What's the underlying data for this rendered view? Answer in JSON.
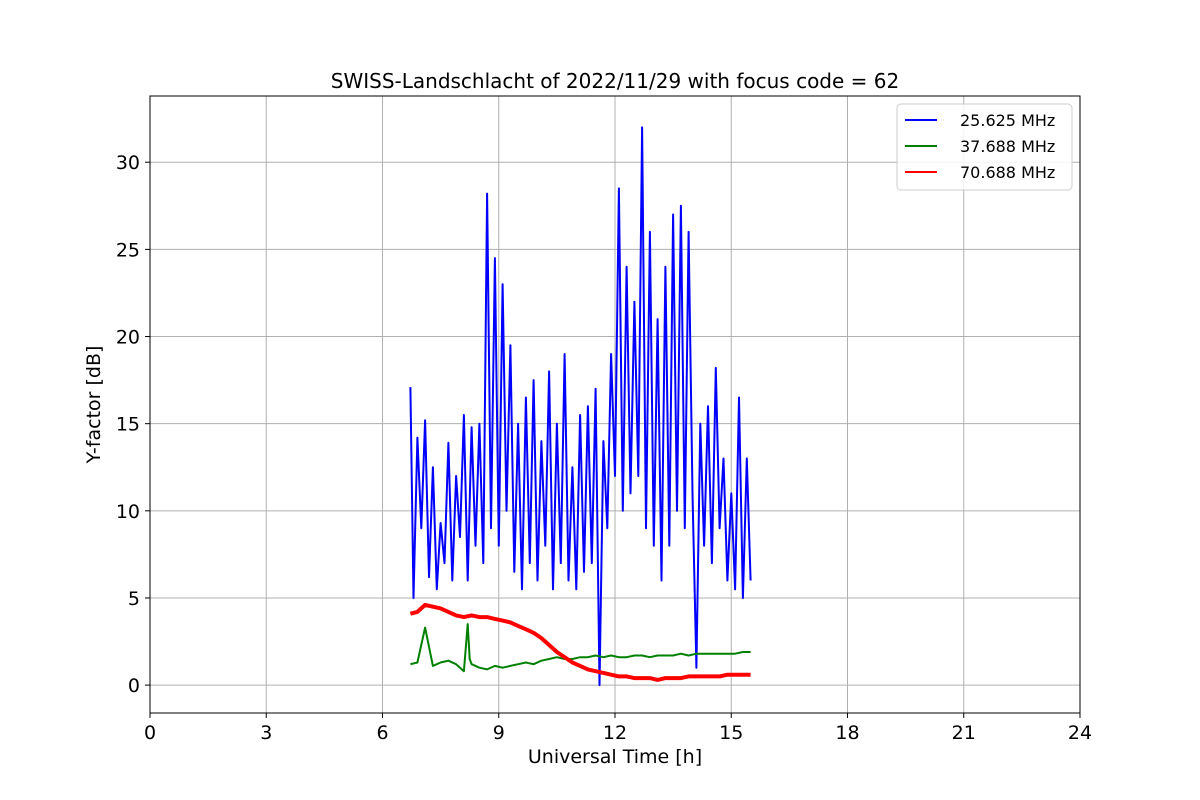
{
  "chart_data": {
    "type": "line",
    "title": "SWISS-Landschlacht of 2022/11/29 with focus code = 62",
    "xlabel": "Universal Time [h]",
    "ylabel": "Y-factor [dB]",
    "xlim": [
      0,
      24
    ],
    "ylim": [
      -1.6,
      33.8
    ],
    "xticks": [
      0,
      3,
      6,
      9,
      12,
      15,
      18,
      21,
      24
    ],
    "yticks": [
      0,
      5,
      10,
      15,
      20,
      25,
      30
    ],
    "grid": true,
    "legend_position": "top-right",
    "series": [
      {
        "name": "25.625 MHz",
        "color": "#0000ff",
        "x": [
          6.72,
          6.8,
          6.9,
          7.0,
          7.1,
          7.2,
          7.3,
          7.4,
          7.5,
          7.6,
          7.7,
          7.8,
          7.9,
          8.0,
          8.1,
          8.2,
          8.3,
          8.4,
          8.5,
          8.6,
          8.7,
          8.8,
          8.9,
          9.0,
          9.1,
          9.2,
          9.3,
          9.4,
          9.5,
          9.6,
          9.7,
          9.8,
          9.9,
          10.0,
          10.1,
          10.2,
          10.3,
          10.4,
          10.5,
          10.6,
          10.7,
          10.8,
          10.9,
          11.0,
          11.1,
          11.2,
          11.3,
          11.4,
          11.5,
          11.6,
          11.7,
          11.8,
          11.9,
          12.0,
          12.1,
          12.2,
          12.3,
          12.4,
          12.5,
          12.6,
          12.7,
          12.8,
          12.9,
          13.0,
          13.1,
          13.2,
          13.3,
          13.4,
          13.5,
          13.6,
          13.7,
          13.8,
          13.9,
          14.0,
          14.1,
          14.2,
          14.3,
          14.4,
          14.5,
          14.6,
          14.7,
          14.8,
          14.9,
          15.0,
          15.1,
          15.2,
          15.3,
          15.4,
          15.5
        ],
        "values": [
          17.1,
          5.0,
          14.2,
          9.0,
          15.2,
          6.2,
          12.5,
          5.5,
          9.3,
          7.0,
          13.9,
          6.0,
          12.0,
          8.5,
          15.5,
          6.0,
          14.8,
          8.0,
          15.0,
          7.0,
          28.2,
          9.0,
          24.5,
          8.0,
          23.0,
          10.0,
          19.5,
          6.5,
          15.0,
          5.5,
          16.5,
          7.0,
          17.5,
          6.0,
          14.0,
          8.0,
          18.0,
          5.5,
          15.0,
          7.0,
          19.0,
          6.0,
          12.5,
          5.5,
          15.5,
          6.5,
          16.0,
          7.0,
          17.0,
          0.0,
          14.0,
          9.0,
          19.0,
          12.0,
          28.5,
          10.0,
          24.0,
          11.0,
          22.0,
          12.0,
          32.0,
          9.0,
          26.0,
          8.0,
          21.0,
          6.0,
          24.0,
          8.0,
          27.0,
          10.0,
          27.5,
          9.0,
          26.0,
          11.0,
          1.0,
          15.0,
          8.0,
          16.0,
          7.0,
          18.2,
          9.0,
          13.0,
          6.0,
          11.0,
          5.5,
          16.5,
          5.0,
          13.0,
          6.0
        ]
      },
      {
        "name": "37.688 MHz",
        "color": "#008000",
        "x": [
          6.72,
          6.9,
          7.1,
          7.3,
          7.5,
          7.7,
          7.9,
          8.1,
          8.2,
          8.25,
          8.3,
          8.5,
          8.7,
          8.9,
          9.1,
          9.3,
          9.5,
          9.7,
          9.9,
          10.1,
          10.3,
          10.5,
          10.7,
          10.9,
          11.1,
          11.3,
          11.5,
          11.7,
          11.9,
          12.1,
          12.3,
          12.5,
          12.7,
          12.9,
          13.1,
          13.3,
          13.5,
          13.7,
          13.9,
          14.1,
          14.3,
          14.5,
          14.7,
          14.9,
          15.1,
          15.3,
          15.5
        ],
        "values": [
          1.2,
          1.3,
          3.3,
          1.1,
          1.3,
          1.4,
          1.2,
          0.8,
          3.5,
          1.5,
          1.2,
          1.0,
          0.9,
          1.1,
          1.0,
          1.1,
          1.2,
          1.3,
          1.2,
          1.4,
          1.5,
          1.6,
          1.5,
          1.5,
          1.6,
          1.6,
          1.7,
          1.6,
          1.7,
          1.6,
          1.6,
          1.7,
          1.7,
          1.6,
          1.7,
          1.7,
          1.7,
          1.8,
          1.7,
          1.8,
          1.8,
          1.8,
          1.8,
          1.8,
          1.8,
          1.9,
          1.9
        ]
      },
      {
        "name": "70.688 MHz",
        "color": "#ff0000",
        "x": [
          6.72,
          6.9,
          7.1,
          7.3,
          7.5,
          7.7,
          7.9,
          8.1,
          8.3,
          8.5,
          8.7,
          8.9,
          9.1,
          9.3,
          9.5,
          9.7,
          9.9,
          10.1,
          10.3,
          10.5,
          10.7,
          10.9,
          11.1,
          11.3,
          11.5,
          11.7,
          11.9,
          12.1,
          12.3,
          12.5,
          12.7,
          12.9,
          13.1,
          13.3,
          13.5,
          13.7,
          13.9,
          14.1,
          14.3,
          14.5,
          14.7,
          14.9,
          15.1,
          15.3,
          15.5
        ],
        "values": [
          4.1,
          4.2,
          4.6,
          4.5,
          4.4,
          4.2,
          4.0,
          3.9,
          4.0,
          3.9,
          3.9,
          3.8,
          3.7,
          3.6,
          3.4,
          3.2,
          3.0,
          2.7,
          2.3,
          1.9,
          1.6,
          1.3,
          1.1,
          0.9,
          0.8,
          0.7,
          0.6,
          0.5,
          0.5,
          0.4,
          0.4,
          0.4,
          0.3,
          0.4,
          0.4,
          0.4,
          0.5,
          0.5,
          0.5,
          0.5,
          0.5,
          0.6,
          0.6,
          0.6,
          0.6
        ]
      }
    ]
  }
}
